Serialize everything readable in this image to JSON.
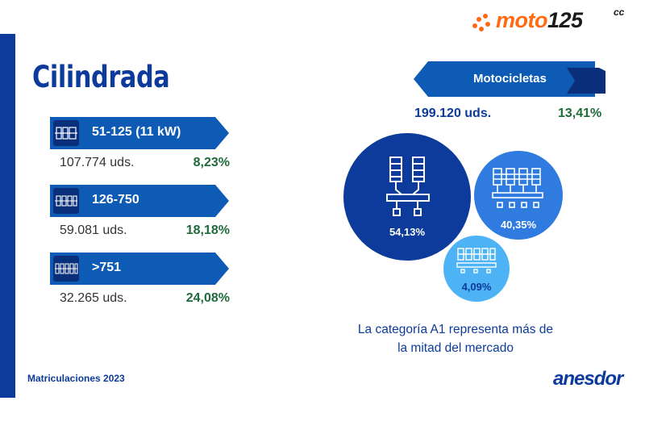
{
  "logo": {
    "word_prefix": "moto",
    "word_number": "125",
    "suffix": "cc"
  },
  "title": "Cilindrada",
  "categories": [
    {
      "label": "51-125 (11 kW)",
      "units": "107.774 uds.",
      "percent": "8,23%",
      "icon": "single-cylinder-icon"
    },
    {
      "label": "126-750",
      "units": "59.081 uds.",
      "percent": "18,18%",
      "icon": "twin-cylinder-icon"
    },
    {
      "label": ">751",
      "units": "32.265 uds.",
      "percent": "24,08%",
      "icon": "multi-cylinder-icon"
    }
  ],
  "motorcycles": {
    "label": "Motocicletas",
    "units": "199.120 uds.",
    "percent": "13,41%"
  },
  "bubbles": [
    {
      "value": "54,13%",
      "color": "#0d3b9c"
    },
    {
      "value": "40,35%",
      "color": "#2f7be0"
    },
    {
      "value": "4,09%",
      "color": "#4db3f5"
    }
  ],
  "caption": {
    "line1": "La categoría A1 representa más de",
    "line2": "la mitad del mercado"
  },
  "footer": "Matriculaciones 2023",
  "brand": "anesdor",
  "colors": {
    "primary": "#0d3b9c",
    "accent": "#ff6a13",
    "green": "#1f6b3a"
  }
}
